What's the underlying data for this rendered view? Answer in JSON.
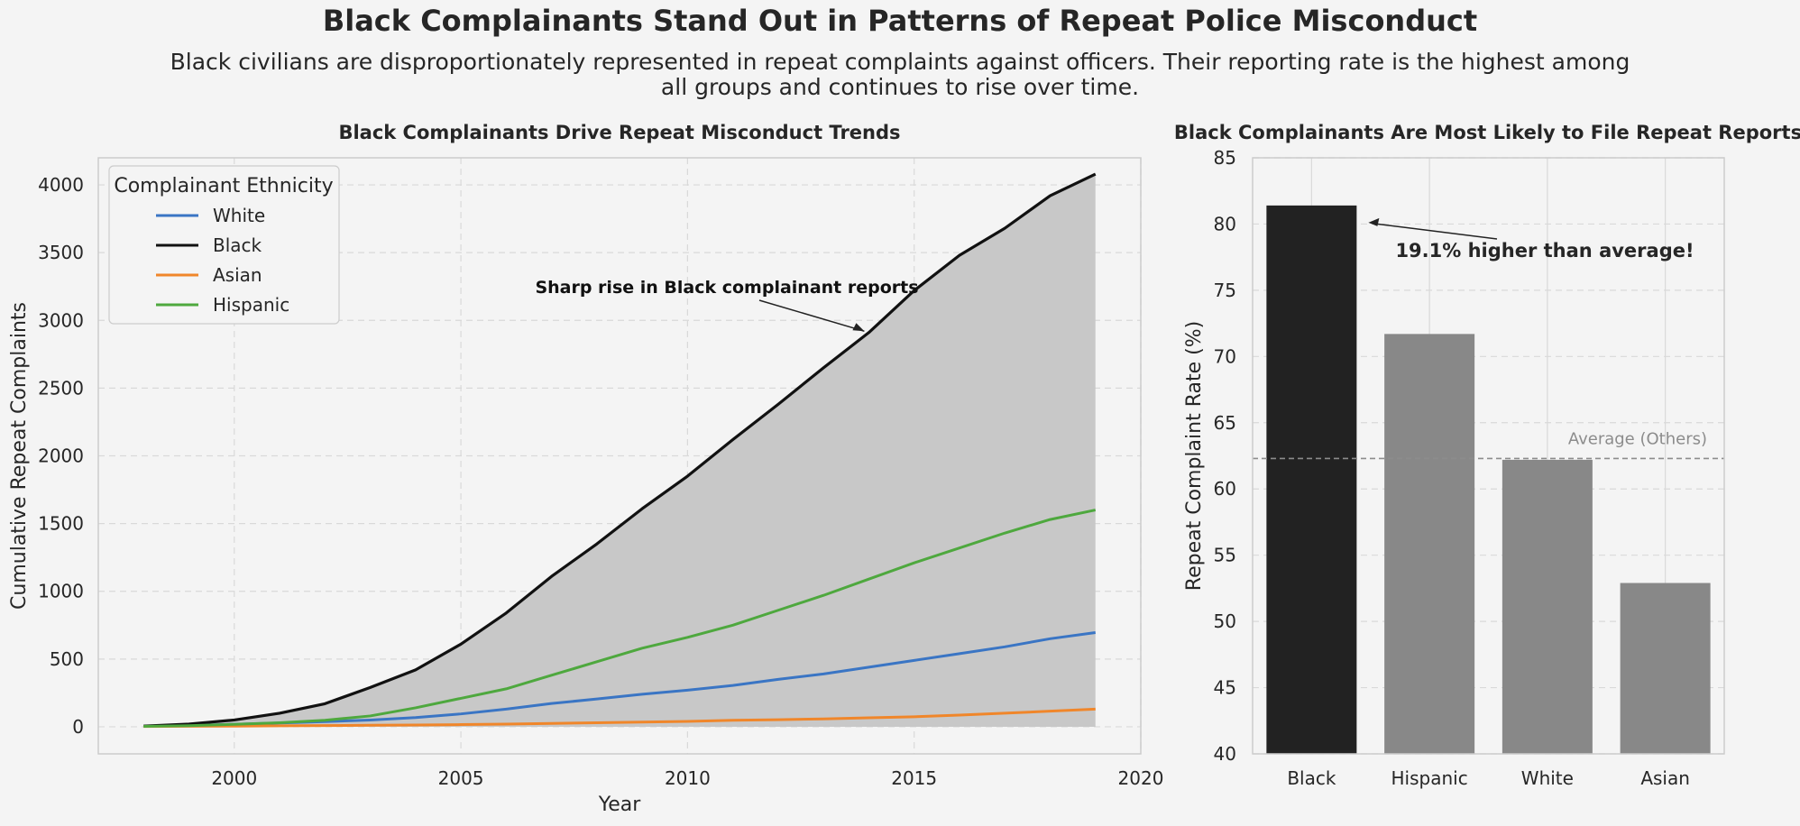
{
  "title": "Black Complainants Stand Out in Patterns of Repeat Police Misconduct",
  "subtitle_line1": "Black civilians are disproportionately represented in repeat complaints against officers. Their reporting rate is the highest among",
  "subtitle_line2": "all groups and continues to rise over time.",
  "colors": {
    "White": "#3a75c4",
    "Black": "#111111",
    "Asian": "#f0862a",
    "Hispanic": "#4ea83e",
    "fill": "#c8c8c8",
    "bar_highlight": "#222222",
    "bar_other": "#888888",
    "avg_line": "#8c8c8c"
  },
  "chart_data": [
    {
      "type": "line",
      "title": "Black Complainants Drive Repeat Misconduct Trends",
      "xlabel": "Year",
      "ylabel": "Cumulative Repeat Complaints",
      "xlim": [
        1997,
        2020
      ],
      "ylim": [
        -200,
        4200
      ],
      "xticks": [
        2000,
        2005,
        2010,
        2015,
        2020
      ],
      "yticks": [
        0,
        500,
        1000,
        1500,
        2000,
        2500,
        3000,
        3500,
        4000
      ],
      "grid": true,
      "legend": {
        "title": "Complainant Ethnicity",
        "placement": "top-left"
      },
      "x": [
        1998,
        1999,
        2000,
        2001,
        2002,
        2003,
        2004,
        2005,
        2006,
        2007,
        2008,
        2009,
        2010,
        2011,
        2012,
        2013,
        2014,
        2015,
        2016,
        2017,
        2018,
        2019
      ],
      "series": [
        {
          "name": "White",
          "values": [
            5,
            10,
            18,
            28,
            38,
            50,
            68,
            95,
            130,
            172,
            205,
            240,
            270,
            305,
            350,
            390,
            440,
            490,
            540,
            590,
            650,
            695
          ]
        },
        {
          "name": "Black",
          "values": [
            5,
            20,
            50,
            100,
            170,
            290,
            420,
            610,
            840,
            1110,
            1350,
            1610,
            1850,
            2120,
            2380,
            2650,
            2910,
            3220,
            3480,
            3680,
            3920,
            4080
          ]
        },
        {
          "name": "Asian",
          "values": [
            2,
            4,
            5,
            7,
            9,
            11,
            13,
            16,
            20,
            25,
            30,
            35,
            40,
            48,
            52,
            58,
            66,
            74,
            86,
            100,
            115,
            130
          ]
        },
        {
          "name": "Hispanic",
          "values": [
            3,
            8,
            18,
            30,
            48,
            80,
            140,
            210,
            280,
            380,
            480,
            580,
            660,
            750,
            860,
            970,
            1090,
            1210,
            1320,
            1430,
            1530,
            1600
          ]
        }
      ],
      "fill_series": "Black",
      "annotation": {
        "text": "Sharp rise in Black complainant reports",
        "x": 2014,
        "y": 2900
      }
    },
    {
      "type": "bar",
      "title": "Black Complainants Are Most Likely to File Repeat Reports",
      "ylabel": "Repeat Complaint Rate (%)",
      "ylim": [
        40,
        85
      ],
      "yticks": [
        40,
        45,
        50,
        55,
        60,
        65,
        70,
        75,
        80,
        85
      ],
      "grid": true,
      "categories": [
        "Black",
        "Hispanic",
        "White",
        "Asian"
      ],
      "values": [
        81.4,
        71.7,
        62.2,
        52.9
      ],
      "highlight": "Black",
      "average_line": {
        "value": 62.3,
        "label": "Average (Others)"
      },
      "annotation": {
        "text": "19.1% higher than average!"
      }
    }
  ]
}
